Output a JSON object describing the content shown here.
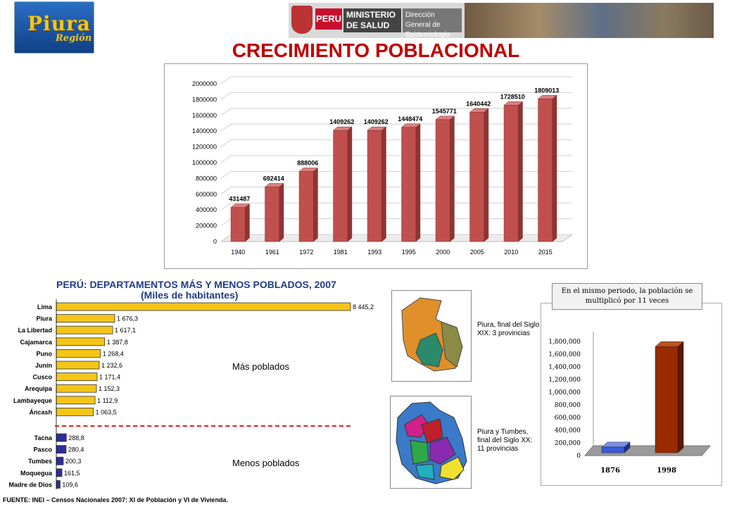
{
  "header": {
    "logo_text": "Piura",
    "logo_sub": "Región",
    "peru": "PERU",
    "ministerio": "MINISTERIO DE SALUD",
    "direccion": "Dirección General de Epidemiología"
  },
  "title": "CRECIMIENTO POBLACIONAL",
  "colors": {
    "bar_red": "#c0504d",
    "bar_yellow": "#f5c518",
    "bar_blue": "#2e2e9a",
    "title_red": "#c00000"
  },
  "chart_data": [
    {
      "type": "bar",
      "title": "",
      "categories": [
        "1940",
        "1961",
        "1972",
        "1981",
        "1993",
        "1995",
        "2000",
        "2005",
        "2010",
        "2015"
      ],
      "values": [
        431487,
        692414,
        888006,
        1409262,
        1409262,
        1448474,
        1545771,
        1640442,
        1728510,
        1809013
      ],
      "data_labels": [
        "431487",
        "692414",
        "888006",
        "1409262",
        "1409262",
        "1448474",
        "1545771",
        "1640442",
        "1728510",
        "1809013"
      ],
      "ylim": [
        0,
        2000000
      ],
      "yticks": [
        "0",
        "200000",
        "400000",
        "600000",
        "800000",
        "1000000",
        "1200000",
        "1400000",
        "1600000",
        "1800000",
        "2000000"
      ],
      "grid": true
    },
    {
      "type": "bar",
      "orientation": "horizontal",
      "title": "PERÚ: DEPARTAMENTOS MÁS Y MENOS POBLADOS, 2007",
      "subtitle": "(Miles de habitantes)",
      "groups": [
        {
          "label": "Más poblados",
          "categories": [
            "Lima",
            "Piura",
            "La Libertad",
            "Cajamarca",
            "Puno",
            "Junín",
            "Cusco",
            "Arequipa",
            "Lambayeque",
            "Áncash"
          ],
          "values": [
            8445.2,
            1676.3,
            1617.1,
            1387.8,
            1268.4,
            1232.6,
            1171.4,
            1152.3,
            1112.9,
            1063.5
          ],
          "value_labels": [
            "8 445,2",
            "1 676,3",
            "1 617,1",
            "1 387,8",
            "1 268,4",
            "1 232,6",
            "1 171,4",
            "1 152,3",
            "1 112,9",
            "1 063,5"
          ]
        },
        {
          "label": "Menos poblados",
          "categories": [
            "Tacna",
            "Pasco",
            "Tumbes",
            "Moquegua",
            "Madre de Dios"
          ],
          "values": [
            288.8,
            280.4,
            200.3,
            161.5,
            109.6
          ],
          "value_labels": [
            "288,8",
            "280,4",
            "200,3",
            "161,5",
            "109,6"
          ]
        }
      ]
    },
    {
      "type": "bar",
      "title": "",
      "categories": [
        "1876",
        "1998"
      ],
      "values": [
        135000,
        1720000
      ],
      "ylim": [
        0,
        1800000
      ],
      "yticks": [
        "0",
        "200,000",
        "400,000",
        "600,000",
        "800,000",
        "1,000,000",
        "1,200,000",
        "1,400,000",
        "1,600,000",
        "1,800,000"
      ]
    }
  ],
  "maps": {
    "map1_caption": "Piura, final del Siglo XIX: 3 provincias",
    "map2_caption": "Piura y Tumbes, final del Siglo XX: 11 provincias"
  },
  "note": "En el mismo periodo, la población se multiplicó por 11 veces",
  "source": "FUENTE: INEI – Censos Nacionales 2007: XI de Población y VI de Vivienda."
}
